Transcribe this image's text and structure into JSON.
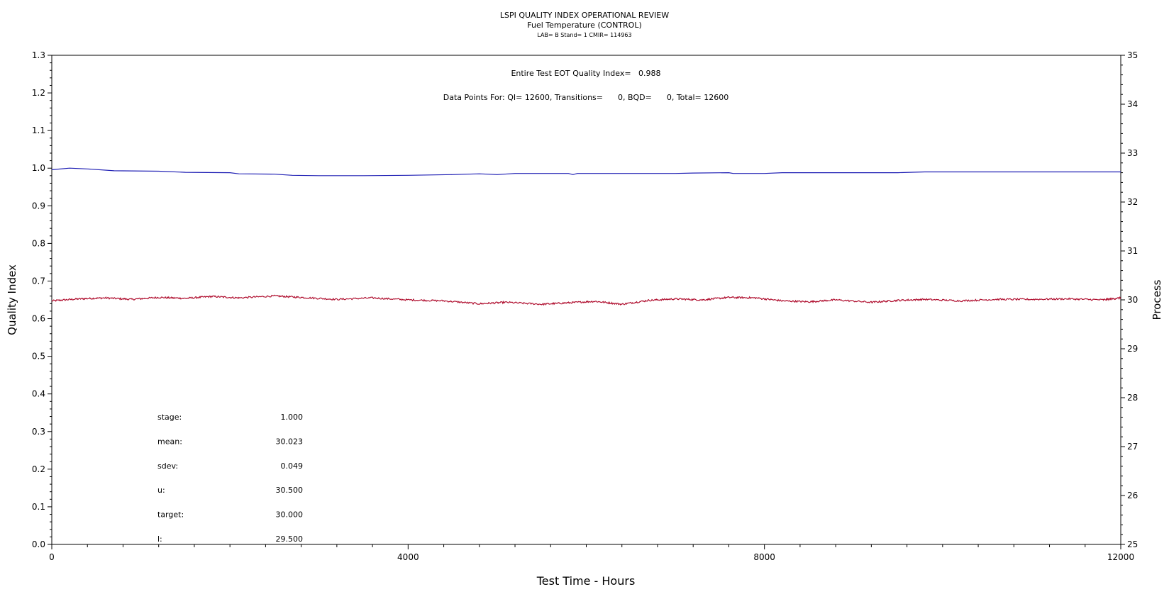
{
  "chart_data": {
    "type": "line",
    "title": "LSPI QUALITY INDEX OPERATIONAL REVIEW",
    "subtitle": "Fuel Temperature (CONTROL)",
    "subsubtitle": "LAB= B Stand= 1 CMIR= 114963",
    "xlabel": "Test Time - Hours",
    "ylabel_left": "Quality Index",
    "ylabel_right": "Process",
    "xlim": [
      0,
      12000
    ],
    "ylim_left": [
      0,
      1.3
    ],
    "ylim_right": [
      25,
      35
    ],
    "x_ticks": [
      0,
      4000,
      8000,
      12000
    ],
    "x_tick_labels": [
      "0",
      "4000",
      "8000",
      "12000"
    ],
    "y_left_ticks": [
      0.0,
      0.1,
      0.2,
      0.3,
      0.4,
      0.5,
      0.6,
      0.7,
      0.8,
      0.9,
      1.0,
      1.1,
      1.2,
      1.3
    ],
    "y_left_tick_labels": [
      "0.0",
      "0.1",
      "0.2",
      "0.3",
      "0.4",
      "0.5",
      "0.6",
      "0.7",
      "0.8",
      "0.9",
      "1.0",
      "1.1",
      "1.2",
      "1.3"
    ],
    "y_right_ticks": [
      25,
      26,
      27,
      28,
      29,
      30,
      31,
      32,
      33,
      34,
      35
    ],
    "y_right_tick_labels": [
      "25",
      "26",
      "27",
      "28",
      "29",
      "30",
      "31",
      "32",
      "33",
      "34",
      "35"
    ],
    "annotations": {
      "eot": "Entire Test EOT Quality Index=   0.988",
      "points": "Data Points For: QI= 12600, Transitions=      0, BQD=      0, Total= 12600"
    },
    "stats": [
      {
        "label": "stage:",
        "value": "1.000"
      },
      {
        "label": "mean:",
        "value": "30.023"
      },
      {
        "label": "sdev:",
        "value": "0.049"
      },
      {
        "label": "u:",
        "value": "30.500"
      },
      {
        "label": "target:",
        "value": "30.000"
      },
      {
        "label": "l:",
        "value": "29.500"
      }
    ],
    "series": [
      {
        "axis": "left",
        "color": "#1f1fb4",
        "points": [
          [
            0,
            0.996
          ],
          [
            200,
            1.0
          ],
          [
            400,
            0.998
          ],
          [
            700,
            0.993
          ],
          [
            1200,
            0.992
          ],
          [
            1500,
            0.989
          ],
          [
            2000,
            0.988
          ],
          [
            2100,
            0.985
          ],
          [
            2500,
            0.984
          ],
          [
            2700,
            0.981
          ],
          [
            3000,
            0.98
          ],
          [
            3500,
            0.98
          ],
          [
            4000,
            0.981
          ],
          [
            4500,
            0.983
          ],
          [
            4800,
            0.985
          ],
          [
            5000,
            0.983
          ],
          [
            5200,
            0.986
          ],
          [
            5800,
            0.986
          ],
          [
            5850,
            0.983
          ],
          [
            5900,
            0.986
          ],
          [
            6500,
            0.986
          ],
          [
            7000,
            0.986
          ],
          [
            7200,
            0.987
          ],
          [
            7600,
            0.988
          ],
          [
            7650,
            0.986
          ],
          [
            8000,
            0.986
          ],
          [
            8200,
            0.988
          ],
          [
            9000,
            0.988
          ],
          [
            9500,
            0.988
          ],
          [
            9800,
            0.99
          ],
          [
            10500,
            0.99
          ],
          [
            11000,
            0.99
          ],
          [
            12000,
            0.99
          ]
        ]
      },
      {
        "axis": "right",
        "color": "#b01030",
        "points": [
          [
            0,
            29.98
          ],
          [
            300,
            30.02
          ],
          [
            600,
            30.04
          ],
          [
            900,
            30.01
          ],
          [
            1200,
            30.05
          ],
          [
            1500,
            30.03
          ],
          [
            1800,
            30.07
          ],
          [
            2100,
            30.04
          ],
          [
            2500,
            30.08
          ],
          [
            2800,
            30.05
          ],
          [
            3200,
            30.01
          ],
          [
            3600,
            30.04
          ],
          [
            4000,
            30.0
          ],
          [
            4400,
            29.98
          ],
          [
            4800,
            29.92
          ],
          [
            5100,
            29.95
          ],
          [
            5500,
            29.91
          ],
          [
            5800,
            29.94
          ],
          [
            6100,
            29.97
          ],
          [
            6400,
            29.91
          ],
          [
            6700,
            29.99
          ],
          [
            7000,
            30.02
          ],
          [
            7300,
            30.0
          ],
          [
            7600,
            30.05
          ],
          [
            7900,
            30.04
          ],
          [
            8200,
            29.98
          ],
          [
            8500,
            29.96
          ],
          [
            8800,
            30.0
          ],
          [
            9200,
            29.95
          ],
          [
            9500,
            29.99
          ],
          [
            9800,
            30.01
          ],
          [
            10200,
            29.98
          ],
          [
            10600,
            30.01
          ],
          [
            11000,
            30.01
          ],
          [
            11400,
            30.02
          ],
          [
            11800,
            30.0
          ],
          [
            12000,
            30.04
          ]
        ]
      }
    ]
  }
}
